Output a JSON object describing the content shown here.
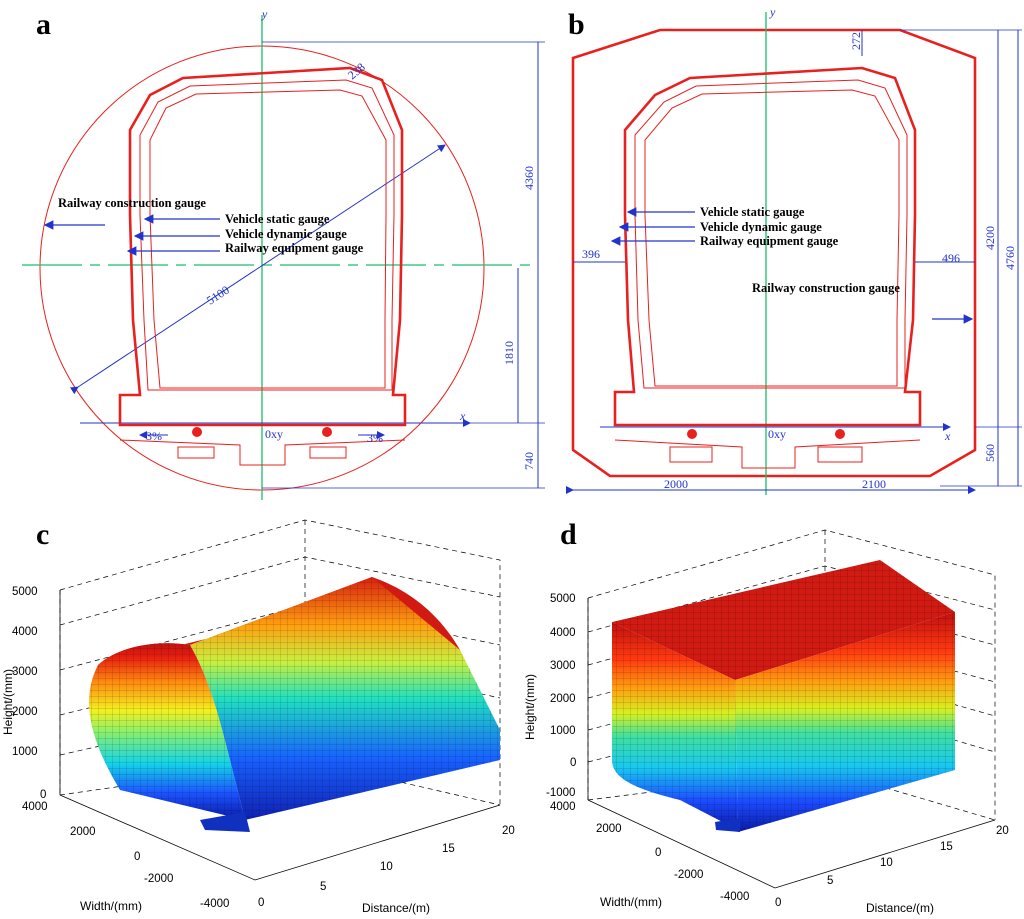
{
  "panels": {
    "a": {
      "letter": "a",
      "axis_y": "y",
      "axis_x": "x",
      "origin": "0xy",
      "gauges": {
        "construction": "Railway construction gauge",
        "static": "Vehicle static gauge",
        "dynamic": "Vehicle dynamic gauge",
        "equipment": "Railway equipment gauge"
      },
      "dims": {
        "d238": "238",
        "radius": "5100",
        "d4360": "4360",
        "d1810": "1810",
        "d740": "740",
        "slope_left": "3%",
        "slope_right": "3%"
      }
    },
    "b": {
      "letter": "b",
      "axis_y": "y",
      "axis_x": "x",
      "origin": "0xy",
      "gauges": {
        "static": "Vehicle static gauge",
        "dynamic": "Vehicle dynamic gauge",
        "equipment": "Railway equipment gauge",
        "construction": "Railway construction gauge"
      },
      "dims": {
        "d272": "272",
        "d396": "396",
        "d496": "496",
        "d4200": "4200",
        "d4760": "4760",
        "d560": "560",
        "d2000": "2000",
        "d2100": "2100"
      }
    },
    "c": {
      "letter": "c",
      "zlabel": "Height/(mm)",
      "ylabel": "Width/(mm)",
      "xlabel": "Distance/(m)",
      "zticks": [
        "5000",
        "4000",
        "3000",
        "2000",
        "1000",
        "0"
      ],
      "yticks": [
        "4000",
        "2000",
        "0",
        "-2000",
        "-4000"
      ],
      "xticks": [
        "0",
        "5",
        "10",
        "15",
        "20"
      ]
    },
    "d": {
      "letter": "d",
      "zlabel": "Height/(mm)",
      "ylabel": "Width/(mm)",
      "xlabel": "Distance/(m)",
      "zticks": [
        "5000",
        "4000",
        "3000",
        "2000",
        "1000",
        "0",
        "-1000"
      ],
      "yticks": [
        "4000",
        "2000",
        "0",
        "-2000",
        "-4000"
      ],
      "xticks": [
        "0",
        "5",
        "10",
        "15",
        "20"
      ]
    }
  },
  "colors": {
    "gauge_red": "#e8201e",
    "dim_blue": "#2233cc",
    "axis_green": "#1bbf6a"
  }
}
